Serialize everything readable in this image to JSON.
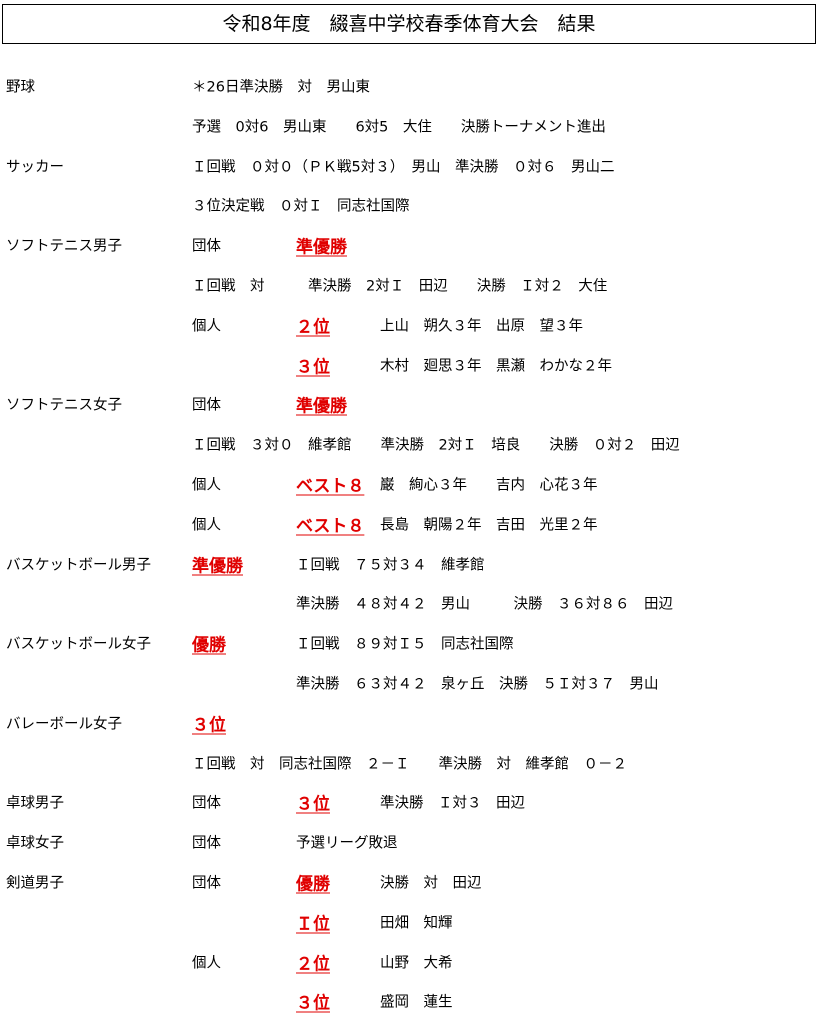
{
  "title": "令和8年度　綴喜中学校春季体育大会　結果",
  "rows": [
    [
      "野球",
      "＊26日準決勝　対　男山東"
    ],
    [
      "予選　0対6　男山東　　6対5　大住　　決勝トーナメント進出"
    ],
    [
      "サッカー",
      "Ｉ回戦　０対０（ＰＫ戦5対３）　男山　準決勝　０対６　男山二"
    ],
    [
      "３位決定戦　０対Ｉ　同志社国際"
    ],
    [
      "ソフトテニス男子",
      "団体",
      "準優勝"
    ],
    [
      "Ｉ回戦　対　　　準決勝　2対Ｉ　田辺　　決勝　Ｉ対２　大住"
    ],
    [
      "個人",
      "２位",
      "上山　朔久３年　出原　望３年"
    ],
    [
      "３位",
      "木村　廻思３年　黒瀬　わかな２年"
    ],
    [
      "ソフトテニス女子",
      "団体",
      "準優勝"
    ],
    [
      "Ｉ回戦　３対０　維孝館　　準決勝　2対Ｉ　培良　　決勝　０対２　田辺"
    ],
    [
      "個人",
      "ベスト８",
      "巌　絢心３年　　吉内　心花３年"
    ],
    [
      "個人",
      "ベスト８",
      "長島　朝陽２年　吉田　光里２年"
    ],
    [
      "バスケットボール男子",
      "準優勝",
      "Ｉ回戦　７５対３４　維孝館"
    ],
    [
      "準決勝　４８対４２　男山　　　決勝　３６対８６　田辺"
    ],
    [
      "バスケットボール女子",
      "優勝",
      "Ｉ回戦　８９対Ｉ５　同志社国際"
    ],
    [
      "準決勝　６３対４２　泉ヶ丘　決勝　５Ｉ対３７　男山"
    ],
    [
      "バレーボール女子",
      "３位"
    ],
    [
      "Ｉ回戦　対　同志社国際　２－Ｉ　　準決勝　対　維孝館　０－２"
    ],
    [
      "卓球男子",
      "団体",
      "３位",
      "準決勝　Ｉ対３　田辺"
    ],
    [
      "卓球女子",
      "団体",
      "予選リーグ敗退"
    ],
    [
      "剣道男子",
      "団体",
      "優勝",
      "決勝　対　田辺"
    ],
    [
      "Ｉ位",
      "田畑　知輝"
    ],
    [
      "個人",
      "２位",
      "山野　大希"
    ],
    [
      "３位",
      "盛岡　蓮生"
    ]
  ]
}
